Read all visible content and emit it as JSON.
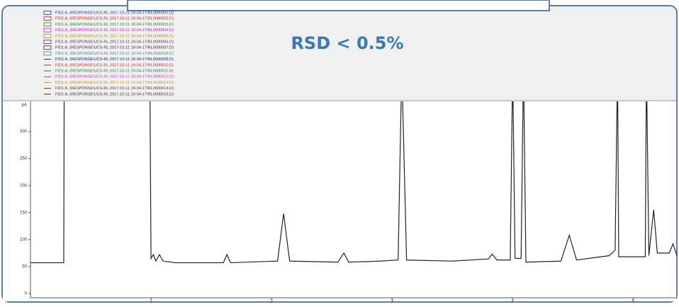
{
  "chart_data": {
    "type": "line",
    "annotation": "RSD < 0.5%",
    "ylabel": "pA",
    "xlim": [
      0,
      5.38
    ],
    "ylim": [
      -8,
      356
    ],
    "xticks": [
      1,
      2,
      3,
      4,
      5
    ],
    "yticks": [
      0,
      50,
      100,
      150,
      200,
      250,
      300
    ],
    "color": "#222222",
    "x": [
      0,
      0.276,
      0.28,
      0.99,
      1.0,
      1.02,
      1.04,
      1.07,
      1.1,
      1.2,
      1.6,
      1.63,
      1.66,
      2.05,
      2.1,
      2.15,
      2.55,
      2.6,
      2.64,
      2.9,
      3.05,
      3.08,
      3.12,
      3.5,
      3.8,
      3.83,
      3.87,
      3.98,
      4.0,
      4.02,
      4.07,
      4.09,
      4.11,
      4.4,
      4.47,
      4.53,
      4.8,
      4.85,
      4.87,
      4.88,
      5.1,
      5.11,
      5.13,
      5.17,
      5.2,
      5.3,
      5.33,
      5.36,
      5.38
    ],
    "values": [
      57,
      57,
      420,
      420,
      65,
      72,
      60,
      72,
      60,
      57,
      57,
      72,
      57,
      60,
      148,
      60,
      58,
      75,
      58,
      60,
      62,
      420,
      62,
      60,
      64,
      73,
      62,
      62,
      420,
      65,
      65,
      420,
      58,
      60,
      108,
      62,
      70,
      80,
      420,
      68,
      68,
      420,
      70,
      155,
      75,
      75,
      92,
      72,
      72
    ],
    "legend": [
      {
        "name": "FID1 A, (RESPONSE\\UCS-RL 2017-10-11 19-04-17\\RL0000001.D)",
        "color": "#2b2bb0"
      },
      {
        "name": "FID1 A, (RESPONSE\\UCS-RL 2017-10-11 19-04-17\\RL0000002.D)",
        "color": "#d02020"
      },
      {
        "name": "FID1 A, (RESPONSE\\UCS-RL 2017-10-11 19-04-17\\RL0000003.D)",
        "color": "#209020"
      },
      {
        "name": "FID1 A, (RESPONSE\\UCS-RL 2017-10-11 19-04-17\\RL0000004.D)",
        "color": "#c020c0"
      },
      {
        "name": "FID1 A, (RESPONSE\\UCS-RL 2017-10-11 19-04-17\\RL0000005.D)",
        "color": "#a09020"
      },
      {
        "name": "FID1 A, (RESPONSE\\UCS-RL 2017-10-11 19-04-17\\RL0000006.D)",
        "color": "#503060"
      },
      {
        "name": "FID1 A, (RESPONSE\\UCS-RL 2017-10-11 19-04-17\\RL0000007.D)",
        "color": "#303030"
      },
      {
        "name": "FID1 A, (RESPONSE\\UCS-RL 2017-10-11 19-04-17\\RL0000008.D)",
        "color": "#409090"
      },
      {
        "name": "FID1 A, (RESPONSE\\UCS-RL 2017-10-11 19-04-17\\RL0000009.D)",
        "color": "#202080"
      },
      {
        "name": "FID1 A, (RESPONSE\\UCS-RL 2017-10-11 19-04-17\\RL0000010.D)",
        "color": "#c03030"
      },
      {
        "name": "FID1 A, (RESPONSE\\UCS-RL 2017-10-11 19-04-17\\RL0000011.D)",
        "color": "#208040"
      },
      {
        "name": "FID1 A, (RESPONSE\\UCS-RL 2017-10-11 19-04-17\\RL0000012.D)",
        "color": "#d030d0"
      },
      {
        "name": "FID1 A, (RESPONSE\\UCS-RL 2017-10-11 19-04-17\\RL0000013.D)",
        "color": "#b0a030"
      },
      {
        "name": "FID1 A, (RESPONSE\\UCS-RL 2017-10-11 19-04-17\\RL0000014.D)",
        "color": "#703030"
      },
      {
        "name": "FID1 A, (RESPONSE\\UCS-RL 2017-10-11 19-04-17\\RL0000015.D)",
        "color": "#303840"
      }
    ]
  }
}
